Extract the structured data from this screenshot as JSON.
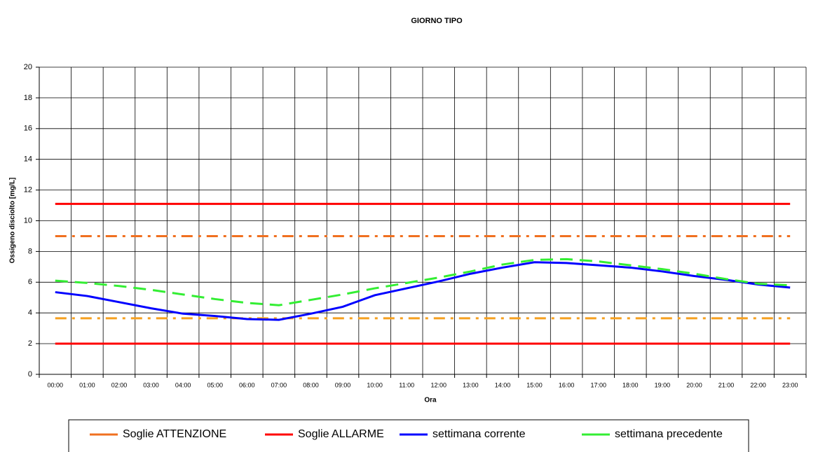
{
  "chart_data": {
    "type": "line",
    "title": "GIORNO TIPO",
    "x_label": "Ora",
    "y_label": "Ossigeno disciolto [mg/L]",
    "categories": [
      "00:00",
      "01:00",
      "02:00",
      "03:00",
      "04:00",
      "05:00",
      "06:00",
      "07:00",
      "08:00",
      "09:00",
      "10:00",
      "11:00",
      "12:00",
      "13:00",
      "14:00",
      "15:00",
      "16:00",
      "17:00",
      "18:00",
      "19:00",
      "20:00",
      "21:00",
      "22:00",
      "23:00"
    ],
    "ylim": [
      0,
      20
    ],
    "yticks": [
      0,
      2,
      4,
      6,
      8,
      10,
      12,
      14,
      16,
      18,
      20
    ],
    "grid": true,
    "series": [
      {
        "name": "Soglie ATTENZIONE",
        "color": "#f07020",
        "dash": "dashdot",
        "values": [
          9,
          9,
          9,
          9,
          9,
          9,
          9,
          9,
          9,
          9,
          9,
          9,
          9,
          9,
          9,
          9,
          9,
          9,
          9,
          9,
          9,
          9,
          9,
          9
        ]
      },
      {
        "name": "Soglie ATTENZIONE",
        "color": "#f5a020",
        "dash": "dashdot",
        "values": [
          3.65,
          3.65,
          3.65,
          3.65,
          3.65,
          3.65,
          3.65,
          3.65,
          3.65,
          3.65,
          3.65,
          3.65,
          3.65,
          3.65,
          3.65,
          3.65,
          3.65,
          3.65,
          3.65,
          3.65,
          3.65,
          3.65,
          3.65,
          3.65
        ]
      },
      {
        "name": "Soglie ALLARME",
        "color": "#ff0000",
        "dash": "solid",
        "values": [
          11.1,
          11.1,
          11.1,
          11.1,
          11.1,
          11.1,
          11.1,
          11.1,
          11.1,
          11.1,
          11.1,
          11.1,
          11.1,
          11.1,
          11.1,
          11.1,
          11.1,
          11.1,
          11.1,
          11.1,
          11.1,
          11.1,
          11.1,
          11.1
        ]
      },
      {
        "name": "Soglie ALLARME",
        "color": "#ff0000",
        "dash": "solid",
        "values": [
          2,
          2,
          2,
          2,
          2,
          2,
          2,
          2,
          2,
          2,
          2,
          2,
          2,
          2,
          2,
          2,
          2,
          2,
          2,
          2,
          2,
          2,
          2,
          2
        ]
      },
      {
        "name": "settimana corrente",
        "color": "#0000ff",
        "dash": "solid",
        "values": [
          5.35,
          5.1,
          4.7,
          4.3,
          3.95,
          3.8,
          3.6,
          3.55,
          3.95,
          4.4,
          5.15,
          5.6,
          6.05,
          6.55,
          6.95,
          7.3,
          7.25,
          7.1,
          6.95,
          6.7,
          6.4,
          6.15,
          5.85,
          5.65
        ]
      },
      {
        "name": "settimana precedente",
        "color": "#33ee33",
        "dash": "dash",
        "values": [
          6.1,
          5.95,
          5.75,
          5.5,
          5.2,
          4.9,
          4.65,
          4.5,
          4.85,
          5.2,
          5.6,
          5.95,
          6.3,
          6.7,
          7.15,
          7.45,
          7.5,
          7.35,
          7.1,
          6.85,
          6.55,
          6.2,
          5.9,
          5.8
        ]
      }
    ]
  }
}
